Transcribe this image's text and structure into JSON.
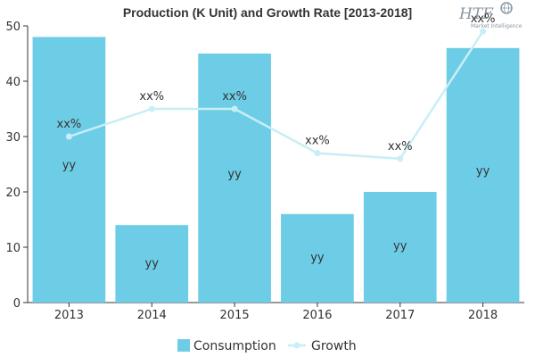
{
  "chart_data": {
    "type": "bar",
    "title": "Production (K Unit) and Growth Rate [2013-2018]",
    "categories": [
      "2013",
      "2014",
      "2015",
      "2016",
      "2017",
      "2018"
    ],
    "ylim": [
      0,
      50
    ],
    "yticks": [
      0,
      10,
      20,
      30,
      40,
      50
    ],
    "series": [
      {
        "name": "Consumption",
        "type": "bar",
        "color": "#6ecde6",
        "values": [
          48,
          14,
          45,
          16,
          20,
          46
        ],
        "labels": [
          "yy",
          "yy",
          "yy",
          "yy",
          "yy",
          "yy"
        ]
      },
      {
        "name": "Growth",
        "type": "line",
        "color": "#c8eef6",
        "values": [
          30,
          35,
          35,
          27,
          26,
          49
        ],
        "labels": [
          "xx%",
          "xx%",
          "xx%",
          "xx%",
          "xx%",
          "xx%"
        ]
      }
    ],
    "legend_position": "bottom",
    "grid": false
  },
  "logo": {
    "text": "HTF",
    "subtext": "Market Intelligence"
  }
}
